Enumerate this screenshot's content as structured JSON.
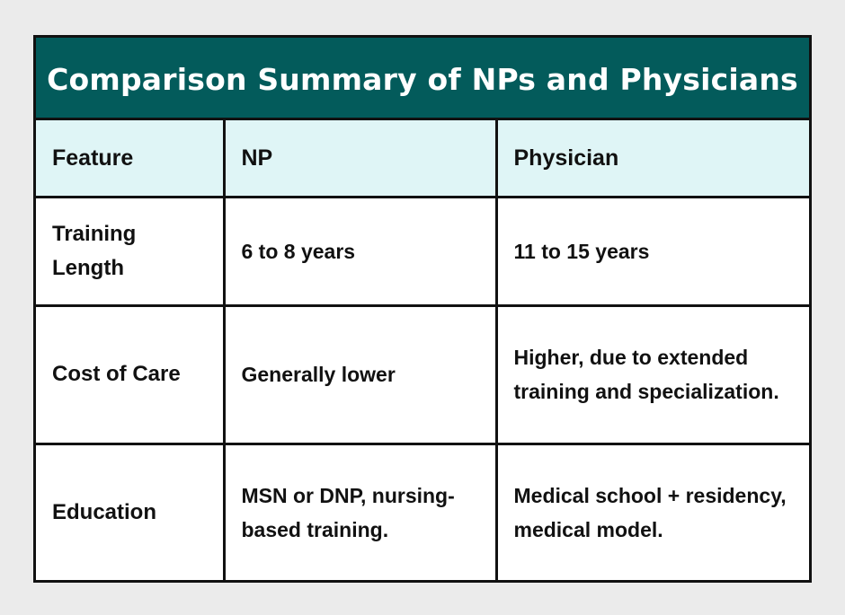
{
  "title": "Comparison Summary of NPs and Physicians",
  "colors": {
    "background": "#ebebeb",
    "title_bar": "#035b5b",
    "header_row": "#dff5f6",
    "title_text": "#ffffff",
    "border": "#111111"
  },
  "table": {
    "headers": [
      "Feature",
      "NP",
      "Physician"
    ],
    "rows": [
      {
        "feature": "Training Length",
        "np": "6 to 8 years",
        "physician": "11 to 15 years"
      },
      {
        "feature": "Cost of Care",
        "np": "Generally lower",
        "physician": "Higher, due to extended training and specialization."
      },
      {
        "feature": "Education",
        "np": "MSN or DNP, nursing-based training.",
        "physician": "Medical school + residency, medical model."
      }
    ]
  }
}
